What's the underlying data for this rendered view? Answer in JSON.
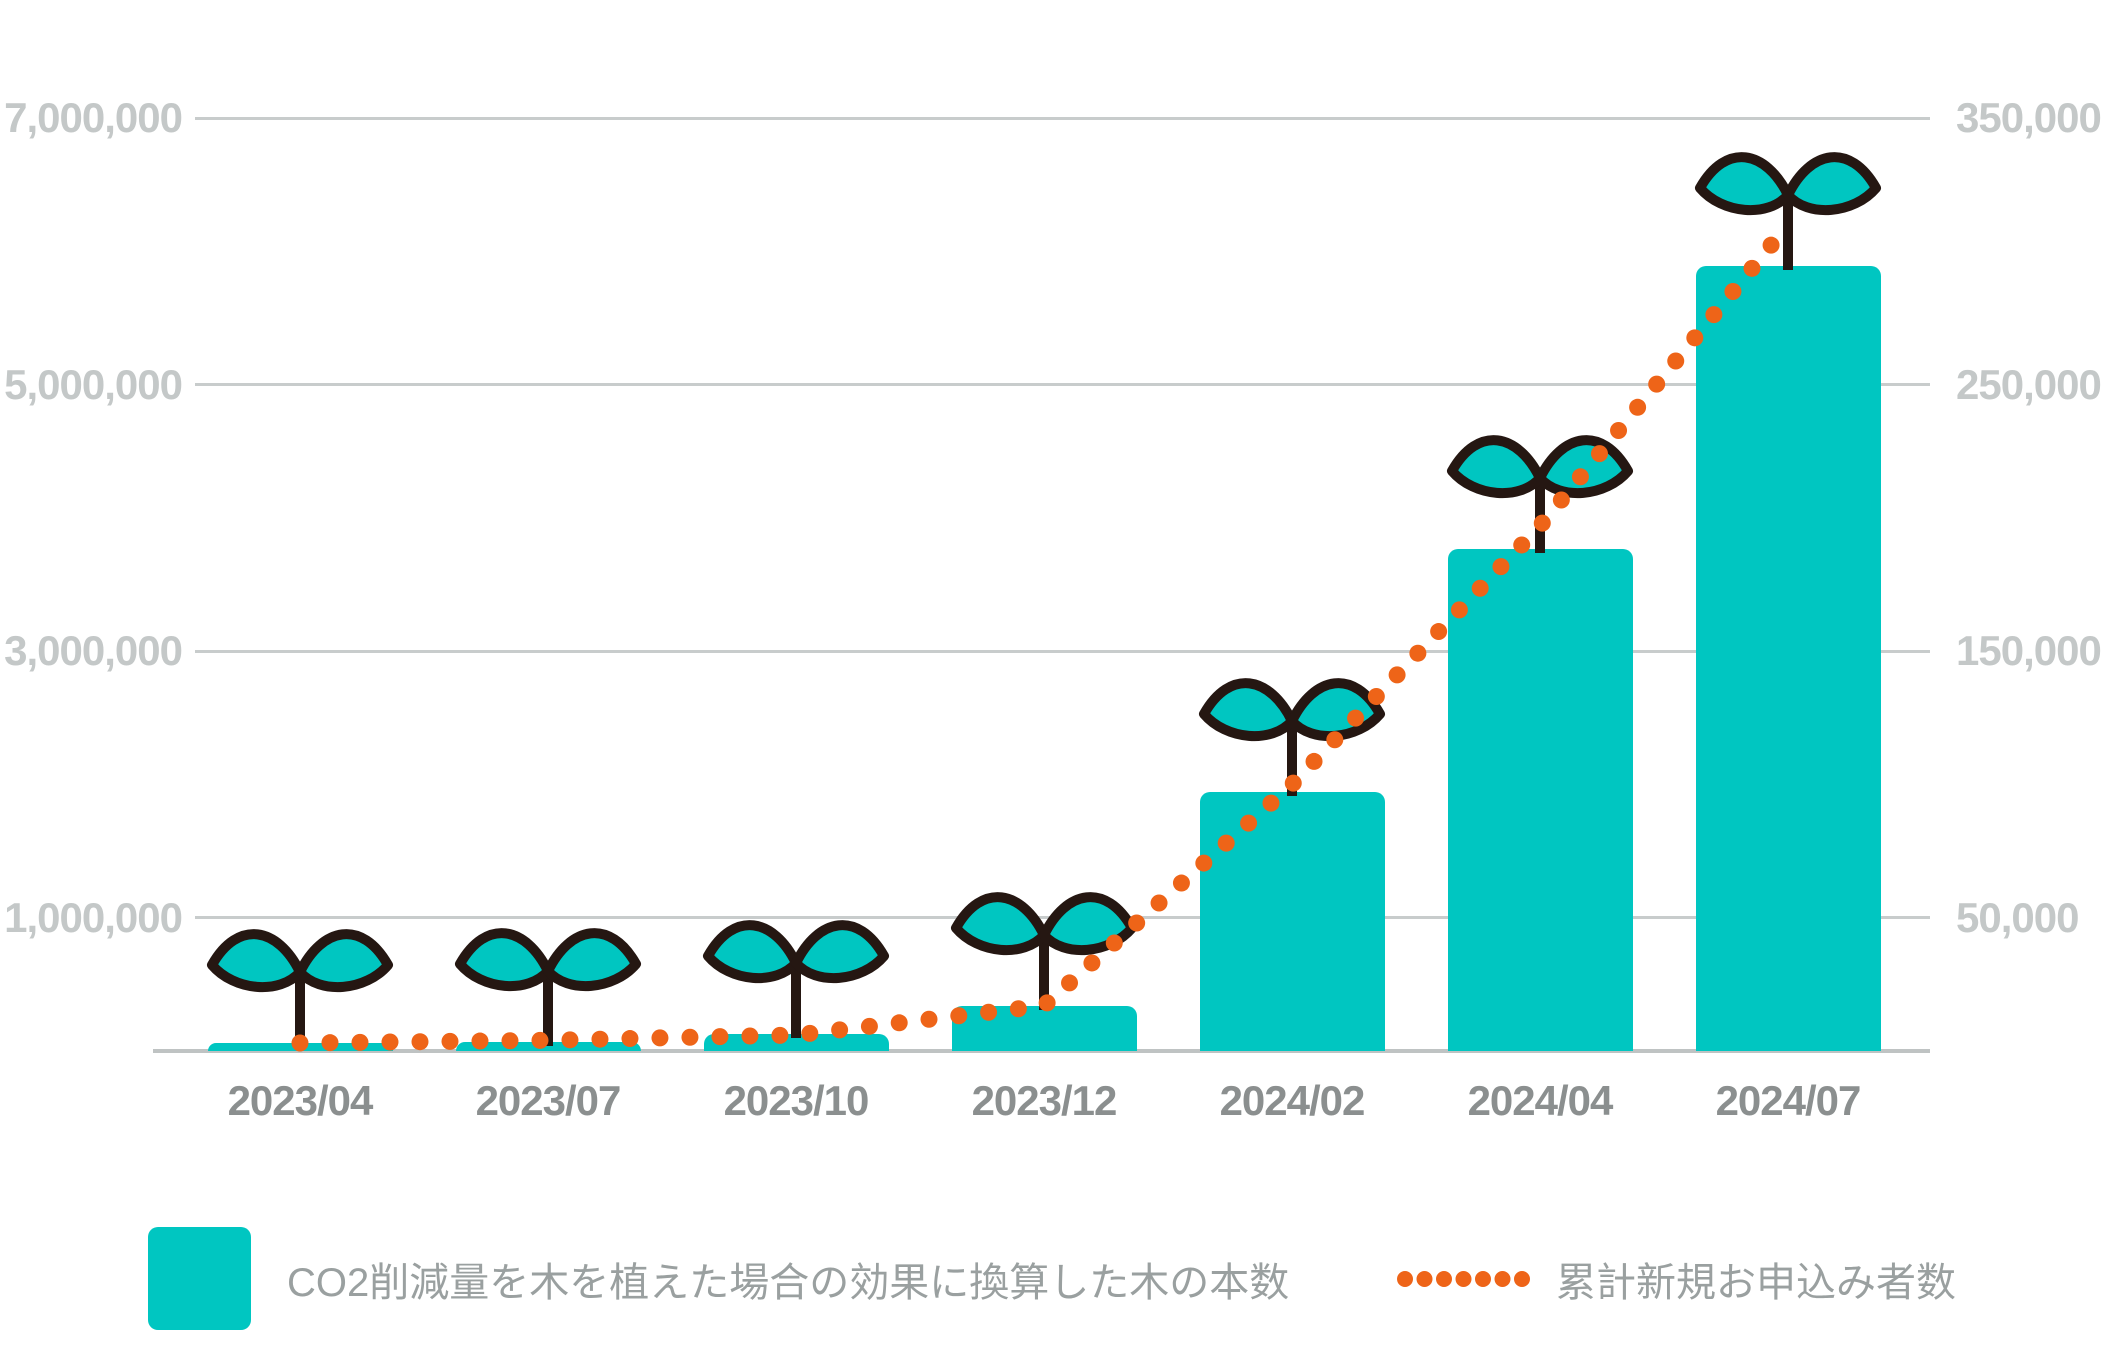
{
  "page": {
    "background": "#ffffff"
  },
  "colors": {
    "bar_teal": "#00c6c1",
    "line_orange": "#ee6418",
    "sprout_outline": "#251712",
    "gridline_gray": "#c8cccc",
    "baseline_gray": "#bfc3c3",
    "y_axis_label_gray": "#c4c8c8",
    "x_axis_label_gray": "#8b8f8f",
    "legend_text_gray": "#9aa0a0"
  },
  "chart_data": {
    "type": "combo-bar-dotted-line",
    "categories": [
      "2023/04",
      "2023/07",
      "2023/10",
      "2023/12",
      "2024/02",
      "2024/04",
      "2024/07"
    ],
    "series": [
      {
        "name": "CO2削減量を木を植えた場合の効果に換算した木の本数",
        "type": "bar",
        "axis": "left",
        "marker": "sprout-icon",
        "values": [
          60000,
          70000,
          130000,
          340000,
          1940000,
          3770000,
          5890000
        ]
      },
      {
        "name": "累計新規お申込み者数",
        "type": "dotted-line",
        "axis": "right",
        "values": [
          3000,
          4000,
          6000,
          17000,
          100000,
          197000,
          310000
        ]
      }
    ],
    "left_axis": {
      "range": [
        0,
        7000000
      ],
      "ticks": [
        {
          "value": 7000000,
          "label": "7,000,000"
        },
        {
          "value": 5000000,
          "label": "5,000,000"
        },
        {
          "value": 3000000,
          "label": "3,000,000"
        },
        {
          "value": 1000000,
          "label": "1,000,000"
        }
      ]
    },
    "right_axis": {
      "range": [
        0,
        350000
      ],
      "ticks": [
        {
          "value": 350000,
          "label": "350,000"
        },
        {
          "value": 250000,
          "label": "250,000"
        },
        {
          "value": 150000,
          "label": "150,000"
        },
        {
          "value": 50000,
          "label": "50,000"
        }
      ]
    },
    "grid": true,
    "legend_position": "bottom"
  },
  "legend": {
    "items": [
      {
        "swatch": "bar-square",
        "label": "CO2削減量を木を植えた場合の効果に換算した木の本数"
      },
      {
        "swatch": "dotted-line",
        "label": "累計新規お申込み者数"
      }
    ]
  }
}
